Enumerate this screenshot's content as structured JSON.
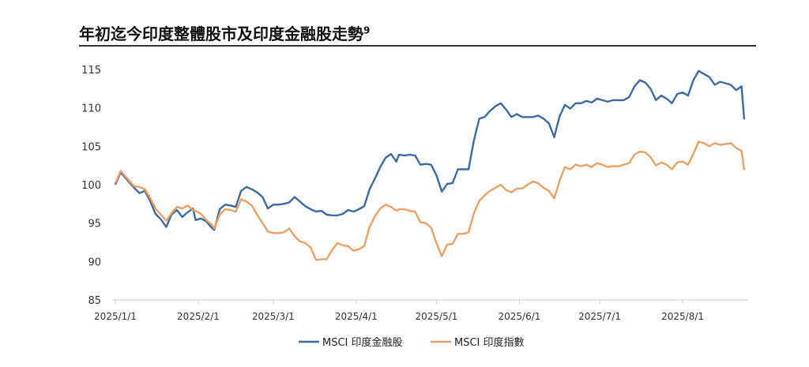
{
  "title": "年初迄今印度整體股市及印度金融股走勢",
  "title_footnote": "9",
  "chart_data": {
    "type": "line",
    "title": "年初迄今印度整體股市及印度金融股走勢",
    "xlabel": "",
    "ylabel": "",
    "ylim": [
      85,
      115
    ],
    "yticks": [
      85,
      90,
      95,
      100,
      105,
      110,
      115
    ],
    "xlim": [
      "2025-01-01",
      "2025-08-24"
    ],
    "xticks": [
      "2025/1/1",
      "2025/2/1",
      "2025/3/1",
      "2025/4/1",
      "2025/5/1",
      "2025/6/1",
      "2025/7/1",
      "2025/8/1"
    ],
    "grid": false,
    "legend_position": "bottom",
    "series": [
      {
        "name": "MSCI 印度金融股",
        "color": "#3c6aa3",
        "points": [
          [
            "2025-01-01",
            100.0
          ],
          [
            "2025-01-03",
            101.6
          ],
          [
            "2025-01-06",
            100.4
          ],
          [
            "2025-01-08",
            99.6
          ],
          [
            "2025-01-10",
            98.9
          ],
          [
            "2025-01-12",
            99.2
          ],
          [
            "2025-01-14",
            97.9
          ],
          [
            "2025-01-16",
            96.2
          ],
          [
            "2025-01-18",
            95.5
          ],
          [
            "2025-01-20",
            94.5
          ],
          [
            "2025-01-22",
            96.1
          ],
          [
            "2025-01-24",
            96.7
          ],
          [
            "2025-01-26",
            95.8
          ],
          [
            "2025-01-28",
            96.4
          ],
          [
            "2025-01-30",
            96.9
          ],
          [
            "2025-01-31",
            95.4
          ],
          [
            "2025-02-02",
            95.6
          ],
          [
            "2025-02-04",
            95.2
          ],
          [
            "2025-02-06",
            94.4
          ],
          [
            "2025-02-07",
            94.1
          ],
          [
            "2025-02-09",
            96.8
          ],
          [
            "2025-02-11",
            97.4
          ],
          [
            "2025-02-13",
            97.3
          ],
          [
            "2025-02-15",
            97.1
          ],
          [
            "2025-02-17",
            99.2
          ],
          [
            "2025-02-19",
            99.7
          ],
          [
            "2025-02-21",
            99.4
          ],
          [
            "2025-02-23",
            99.0
          ],
          [
            "2025-02-25",
            98.4
          ],
          [
            "2025-02-27",
            96.9
          ],
          [
            "2025-03-01",
            97.4
          ],
          [
            "2025-03-03",
            97.4
          ],
          [
            "2025-03-05",
            97.5
          ],
          [
            "2025-03-07",
            97.7
          ],
          [
            "2025-03-09",
            98.4
          ],
          [
            "2025-03-11",
            97.8
          ],
          [
            "2025-03-13",
            97.2
          ],
          [
            "2025-03-15",
            96.8
          ],
          [
            "2025-03-17",
            96.5
          ],
          [
            "2025-03-19",
            96.6
          ],
          [
            "2025-03-21",
            96.1
          ],
          [
            "2025-03-23",
            96.0
          ],
          [
            "2025-03-25",
            96.0
          ],
          [
            "2025-03-27",
            96.2
          ],
          [
            "2025-03-29",
            96.7
          ],
          [
            "2025-03-31",
            96.5
          ],
          [
            "2025-04-02",
            96.8
          ],
          [
            "2025-04-04",
            97.2
          ],
          [
            "2025-04-06",
            99.4
          ],
          [
            "2025-04-08",
            100.8
          ],
          [
            "2025-04-10",
            102.3
          ],
          [
            "2025-04-12",
            103.5
          ],
          [
            "2025-04-14",
            104.0
          ],
          [
            "2025-04-16",
            103.0
          ],
          [
            "2025-04-17",
            103.9
          ],
          [
            "2025-04-19",
            103.8
          ],
          [
            "2025-04-21",
            103.9
          ],
          [
            "2025-04-23",
            103.8
          ],
          [
            "2025-04-25",
            102.6
          ],
          [
            "2025-04-27",
            102.7
          ],
          [
            "2025-04-29",
            102.6
          ],
          [
            "2025-05-01",
            101.2
          ],
          [
            "2025-05-03",
            99.1
          ],
          [
            "2025-05-05",
            100.1
          ],
          [
            "2025-05-07",
            100.2
          ],
          [
            "2025-05-09",
            102.0
          ],
          [
            "2025-05-11",
            102.0
          ],
          [
            "2025-05-13",
            102.0
          ],
          [
            "2025-05-15",
            105.8
          ],
          [
            "2025-05-17",
            108.6
          ],
          [
            "2025-05-19",
            108.8
          ],
          [
            "2025-05-21",
            109.6
          ],
          [
            "2025-05-23",
            110.2
          ],
          [
            "2025-05-25",
            110.6
          ],
          [
            "2025-05-27",
            109.8
          ],
          [
            "2025-05-29",
            108.8
          ],
          [
            "2025-05-31",
            109.2
          ],
          [
            "2025-06-02",
            108.8
          ],
          [
            "2025-06-04",
            108.8
          ],
          [
            "2025-06-06",
            108.8
          ],
          [
            "2025-06-08",
            109.0
          ],
          [
            "2025-06-10",
            108.6
          ],
          [
            "2025-06-12",
            108.0
          ],
          [
            "2025-06-14",
            106.2
          ],
          [
            "2025-06-16",
            108.9
          ],
          [
            "2025-06-18",
            110.4
          ],
          [
            "2025-06-20",
            109.9
          ],
          [
            "2025-06-22",
            110.6
          ],
          [
            "2025-06-24",
            110.6
          ],
          [
            "2025-06-26",
            110.9
          ],
          [
            "2025-06-28",
            110.7
          ],
          [
            "2025-06-30",
            111.2
          ],
          [
            "2025-07-02",
            111.0
          ],
          [
            "2025-07-04",
            110.8
          ],
          [
            "2025-07-06",
            111.0
          ],
          [
            "2025-07-08",
            111.0
          ],
          [
            "2025-07-10",
            111.0
          ],
          [
            "2025-07-12",
            111.4
          ],
          [
            "2025-07-14",
            112.8
          ],
          [
            "2025-07-16",
            113.6
          ],
          [
            "2025-07-18",
            113.3
          ],
          [
            "2025-07-20",
            112.5
          ],
          [
            "2025-07-22",
            111.0
          ],
          [
            "2025-07-24",
            111.6
          ],
          [
            "2025-07-26",
            111.2
          ],
          [
            "2025-07-28",
            110.6
          ],
          [
            "2025-07-30",
            111.8
          ],
          [
            "2025-08-01",
            112.0
          ],
          [
            "2025-08-03",
            111.6
          ],
          [
            "2025-08-05",
            113.6
          ],
          [
            "2025-08-07",
            114.8
          ],
          [
            "2025-08-09",
            114.4
          ],
          [
            "2025-08-11",
            114.0
          ],
          [
            "2025-08-13",
            113.0
          ],
          [
            "2025-08-15",
            113.4
          ],
          [
            "2025-08-17",
            113.2
          ],
          [
            "2025-08-19",
            113.0
          ],
          [
            "2025-08-21",
            112.3
          ],
          [
            "2025-08-23",
            112.8
          ],
          [
            "2025-08-24",
            108.5
          ]
        ]
      },
      {
        "name": "MSCI 印度指數",
        "color": "#ee9f64",
        "points": [
          [
            "2025-01-01",
            100.2
          ],
          [
            "2025-01-03",
            101.8
          ],
          [
            "2025-01-06",
            100.6
          ],
          [
            "2025-01-08",
            99.8
          ],
          [
            "2025-01-10",
            99.7
          ],
          [
            "2025-01-12",
            99.4
          ],
          [
            "2025-01-14",
            98.3
          ],
          [
            "2025-01-16",
            96.9
          ],
          [
            "2025-01-18",
            96.1
          ],
          [
            "2025-01-20",
            95.3
          ],
          [
            "2025-01-22",
            96.3
          ],
          [
            "2025-01-24",
            97.1
          ],
          [
            "2025-01-26",
            96.9
          ],
          [
            "2025-01-28",
            97.3
          ],
          [
            "2025-01-30",
            96.7
          ],
          [
            "2025-01-31",
            96.6
          ],
          [
            "2025-02-02",
            96.2
          ],
          [
            "2025-02-04",
            95.4
          ],
          [
            "2025-02-06",
            94.8
          ],
          [
            "2025-02-07",
            94.3
          ],
          [
            "2025-02-09",
            96.1
          ],
          [
            "2025-02-11",
            96.8
          ],
          [
            "2025-02-13",
            96.7
          ],
          [
            "2025-02-15",
            96.5
          ],
          [
            "2025-02-17",
            98.1
          ],
          [
            "2025-02-19",
            97.8
          ],
          [
            "2025-02-21",
            97.3
          ],
          [
            "2025-02-23",
            96.1
          ],
          [
            "2025-02-25",
            95.0
          ],
          [
            "2025-02-27",
            93.9
          ],
          [
            "2025-03-01",
            93.7
          ],
          [
            "2025-03-03",
            93.7
          ],
          [
            "2025-03-05",
            93.8
          ],
          [
            "2025-03-07",
            94.3
          ],
          [
            "2025-03-09",
            93.3
          ],
          [
            "2025-03-11",
            92.6
          ],
          [
            "2025-03-13",
            92.4
          ],
          [
            "2025-03-15",
            91.8
          ],
          [
            "2025-03-17",
            90.2
          ],
          [
            "2025-03-19",
            90.3
          ],
          [
            "2025-03-21",
            90.3
          ],
          [
            "2025-03-23",
            91.5
          ],
          [
            "2025-03-25",
            92.4
          ],
          [
            "2025-03-27",
            92.1
          ],
          [
            "2025-03-29",
            92.0
          ],
          [
            "2025-03-31",
            91.4
          ],
          [
            "2025-04-02",
            91.6
          ],
          [
            "2025-04-04",
            92.0
          ],
          [
            "2025-04-06",
            94.5
          ],
          [
            "2025-04-08",
            95.9
          ],
          [
            "2025-04-10",
            96.9
          ],
          [
            "2025-04-12",
            97.4
          ],
          [
            "2025-04-14",
            97.1
          ],
          [
            "2025-04-16",
            96.6
          ],
          [
            "2025-04-17",
            96.8
          ],
          [
            "2025-04-19",
            96.8
          ],
          [
            "2025-04-21",
            96.6
          ],
          [
            "2025-04-23",
            96.5
          ],
          [
            "2025-04-25",
            95.1
          ],
          [
            "2025-04-27",
            95.0
          ],
          [
            "2025-04-29",
            94.4
          ],
          [
            "2025-05-01",
            92.4
          ],
          [
            "2025-05-03",
            90.7
          ],
          [
            "2025-05-05",
            92.2
          ],
          [
            "2025-05-07",
            92.3
          ],
          [
            "2025-05-09",
            93.6
          ],
          [
            "2025-05-11",
            93.6
          ],
          [
            "2025-05-13",
            93.8
          ],
          [
            "2025-05-15",
            96.3
          ],
          [
            "2025-05-17",
            97.9
          ],
          [
            "2025-05-19",
            98.6
          ],
          [
            "2025-05-21",
            99.2
          ],
          [
            "2025-05-23",
            99.6
          ],
          [
            "2025-05-25",
            100.0
          ],
          [
            "2025-05-27",
            99.3
          ],
          [
            "2025-05-29",
            99.0
          ],
          [
            "2025-05-31",
            99.5
          ],
          [
            "2025-06-02",
            99.5
          ],
          [
            "2025-06-04",
            100.0
          ],
          [
            "2025-06-06",
            100.4
          ],
          [
            "2025-06-08",
            100.2
          ],
          [
            "2025-06-10",
            99.6
          ],
          [
            "2025-06-12",
            99.2
          ],
          [
            "2025-06-14",
            98.2
          ],
          [
            "2025-06-16",
            100.5
          ],
          [
            "2025-06-18",
            102.3
          ],
          [
            "2025-06-20",
            102.0
          ],
          [
            "2025-06-22",
            102.6
          ],
          [
            "2025-06-24",
            102.4
          ],
          [
            "2025-06-26",
            102.6
          ],
          [
            "2025-06-28",
            102.3
          ],
          [
            "2025-06-30",
            102.8
          ],
          [
            "2025-07-02",
            102.6
          ],
          [
            "2025-07-04",
            102.3
          ],
          [
            "2025-07-06",
            102.4
          ],
          [
            "2025-07-08",
            102.4
          ],
          [
            "2025-07-10",
            102.6
          ],
          [
            "2025-07-12",
            102.8
          ],
          [
            "2025-07-14",
            103.9
          ],
          [
            "2025-07-16",
            104.3
          ],
          [
            "2025-07-18",
            104.2
          ],
          [
            "2025-07-20",
            103.6
          ],
          [
            "2025-07-22",
            102.5
          ],
          [
            "2025-07-24",
            102.9
          ],
          [
            "2025-07-26",
            102.6
          ],
          [
            "2025-07-28",
            102.0
          ],
          [
            "2025-07-30",
            102.9
          ],
          [
            "2025-08-01",
            103.0
          ],
          [
            "2025-08-03",
            102.6
          ],
          [
            "2025-08-05",
            104.0
          ],
          [
            "2025-08-07",
            105.6
          ],
          [
            "2025-08-09",
            105.4
          ],
          [
            "2025-08-11",
            105.0
          ],
          [
            "2025-08-13",
            105.4
          ],
          [
            "2025-08-15",
            105.2
          ],
          [
            "2025-08-17",
            105.3
          ],
          [
            "2025-08-19",
            105.4
          ],
          [
            "2025-08-21",
            104.8
          ],
          [
            "2025-08-23",
            104.4
          ],
          [
            "2025-08-24",
            101.9
          ]
        ]
      }
    ]
  }
}
